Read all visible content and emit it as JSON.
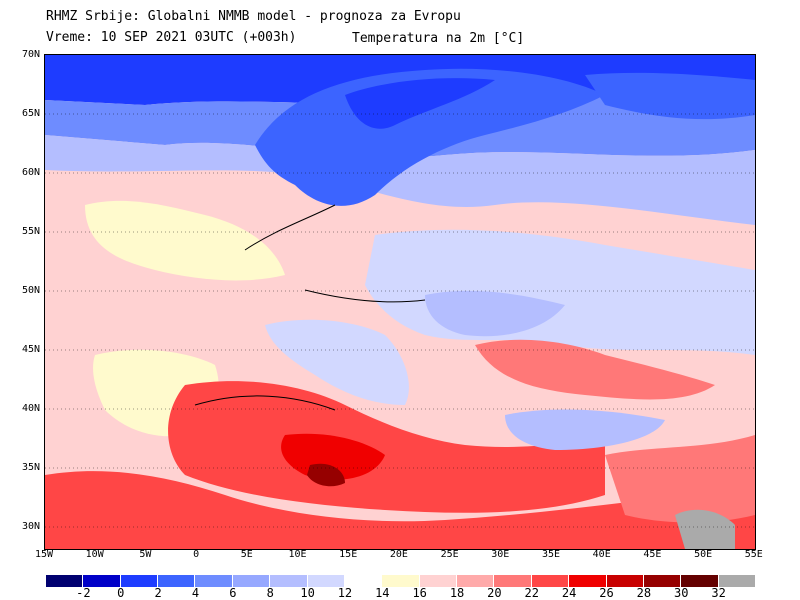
{
  "header": {
    "title": "RHMZ Srbije: Globalni NMMB model - prognoza za Evropu",
    "time": "Vreme: 10 SEP 2021 03UTC (+003h)",
    "parameter": "Temperatura na 2m [°C]"
  },
  "map": {
    "lat_labels": [
      "70N",
      "65N",
      "60N",
      "55N",
      "50N",
      "45N",
      "40N",
      "35N",
      "30N"
    ],
    "lon_labels": [
      "15W",
      "10W",
      "5W",
      "0",
      "5E",
      "10E",
      "15E",
      "20E",
      "25E",
      "30E",
      "35E",
      "40E",
      "45E",
      "50E",
      "55E"
    ]
  },
  "legend": {
    "colors": [
      "#000070",
      "#0000c8",
      "#1e3cff",
      "#3c64ff",
      "#6e8cff",
      "#96a8ff",
      "#b4beff",
      "#d2d8ff",
      "#ffffff",
      "#fffacd",
      "#ffd2d2",
      "#ffaaaa",
      "#ff7878",
      "#ff4646",
      "#f00000",
      "#c80000",
      "#960000",
      "#640000",
      "#aaaaaa"
    ],
    "labels": [
      "-2",
      "0",
      "2",
      "4",
      "6",
      "8",
      "10",
      "12",
      "14",
      "16",
      "18",
      "20",
      "22",
      "24",
      "26",
      "28",
      "30",
      "32"
    ]
  }
}
